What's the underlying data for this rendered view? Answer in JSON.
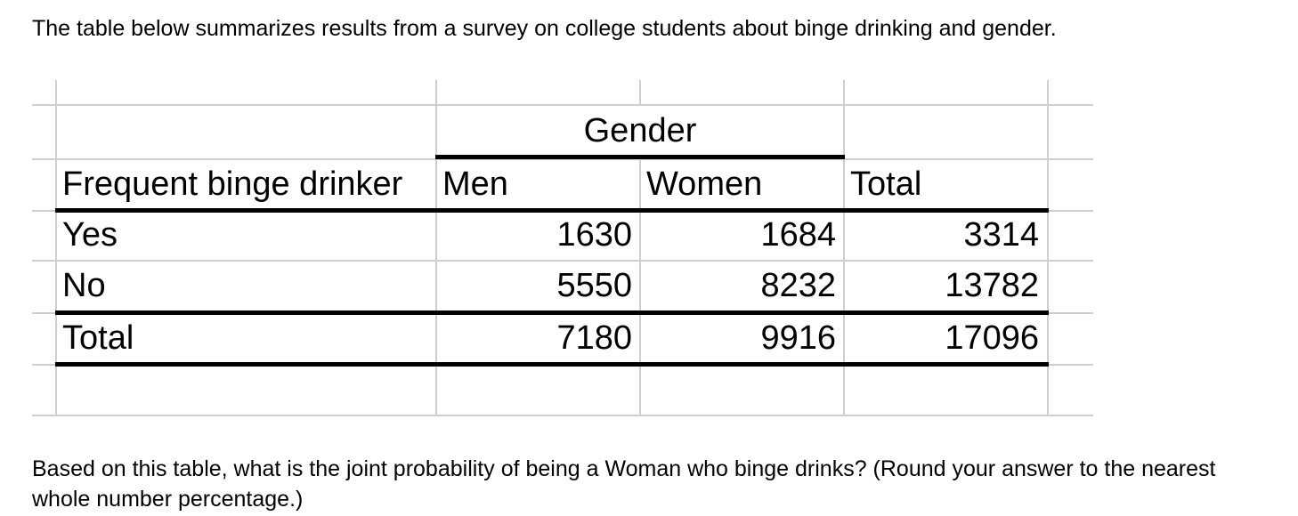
{
  "page": {
    "intro_text": "The table below summarizes results from a survey on college students about binge drinking and gender.",
    "question_line1": "Based on this table, what is the joint probability of being a Woman who binge drinks? (Round your answer to the nearest",
    "question_line2": "whole number percentage.)"
  },
  "table": {
    "group_header": "Gender",
    "header": {
      "row_label": "Frequent binge drinker",
      "men": "Men",
      "women": "Women",
      "total": "Total"
    },
    "rows": [
      {
        "label": "Yes",
        "men": "1630",
        "women": "1684",
        "total": "3314"
      },
      {
        "label": "No",
        "men": "5550",
        "women": "8232",
        "total": "13782"
      },
      {
        "label": "Total",
        "men": "7180",
        "women": "9916",
        "total": "17096"
      }
    ]
  },
  "colors": {
    "gridline": "#cfcfcf",
    "table_border": "#000000",
    "text": "#000000"
  }
}
